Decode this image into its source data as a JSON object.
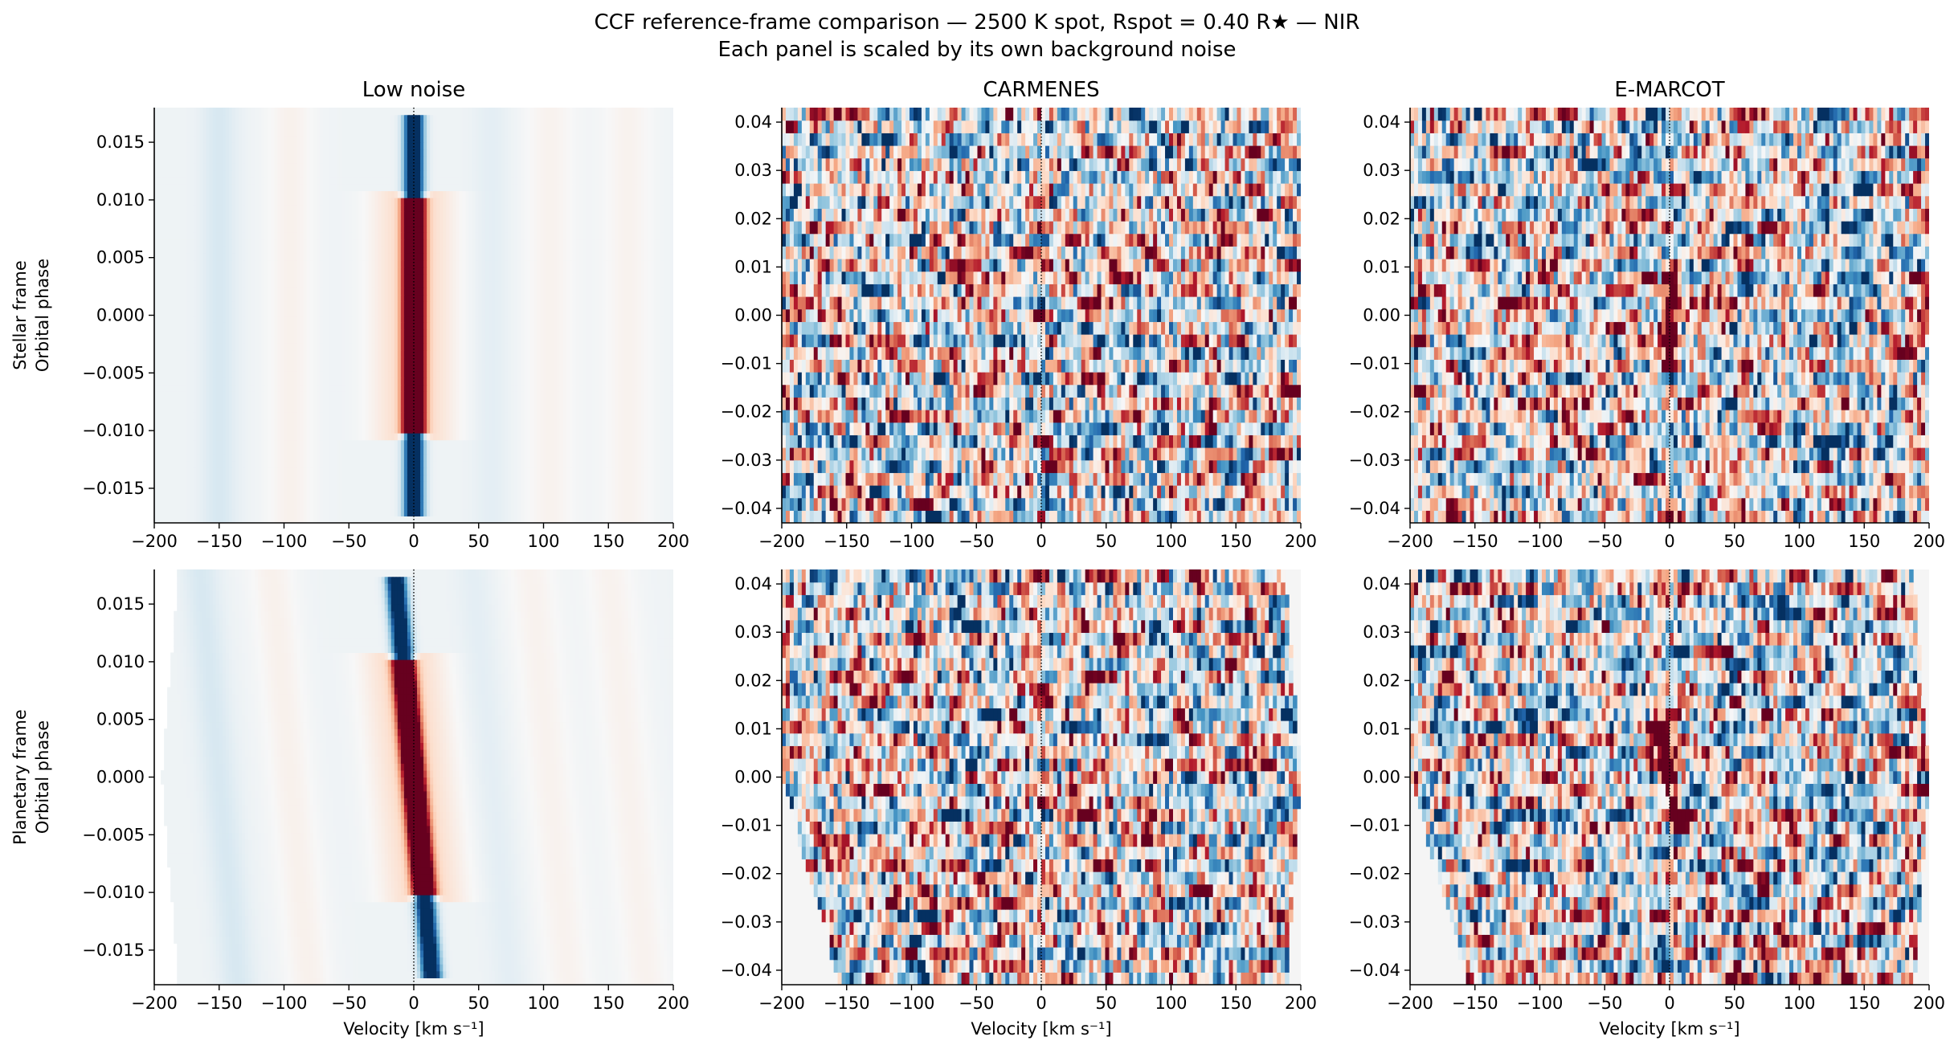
{
  "figure": {
    "title_line1": "CCF reference-frame comparison — 2500 K spot, Rspot = 0.40 R★ — NIR",
    "title_line2": "Each panel is scaled by its own background noise"
  },
  "chart_data": [
    {
      "type": "heatmap",
      "row": "Stellar frame",
      "column": "Low noise",
      "title": "Low noise",
      "xlabel": "",
      "ylabel": "Stellar frame\nOrbital phase",
      "xlim": [
        -200,
        200
      ],
      "ylim": [
        -0.018,
        0.018
      ],
      "xticks": [
        -200,
        -150,
        -100,
        -50,
        0,
        50,
        100,
        150,
        200
      ],
      "yticks": [
        -0.015,
        -0.01,
        -0.005,
        0.0,
        0.005,
        0.01,
        0.015
      ],
      "ytick_labels": [
        "−0.015",
        "−0.010",
        "−0.005",
        "0.000",
        "0.005",
        "0.010",
        "0.015"
      ],
      "colormap": "RdBu_r",
      "reference_line_x": 0,
      "signal": {
        "center_velocity": 0,
        "slope_kms_per_phase": 0,
        "red_trace_phase_range": [
          -0.01,
          0.01
        ],
        "blue_tails": true
      }
    },
    {
      "type": "heatmap",
      "row": "Stellar frame",
      "column": "CARMENES",
      "title": "CARMENES",
      "xlabel": "",
      "ylabel": "",
      "xlim": [
        -200,
        200
      ],
      "ylim": [
        -0.043,
        0.043
      ],
      "xticks": [
        -200,
        -150,
        -100,
        -50,
        0,
        50,
        100,
        150,
        200
      ],
      "yticks": [
        -0.04,
        -0.03,
        -0.02,
        -0.01,
        0.0,
        0.01,
        0.02,
        0.03,
        0.04
      ],
      "ytick_labels": [
        "−0.04",
        "−0.03",
        "−0.02",
        "−0.01",
        "0.00",
        "0.01",
        "0.02",
        "0.03",
        "0.04"
      ],
      "colormap": "RdBu_r",
      "reference_line_x": 0,
      "noise_dominated": true
    },
    {
      "type": "heatmap",
      "row": "Stellar frame",
      "column": "E-MARCOT",
      "title": "E-MARCOT",
      "xlabel": "",
      "ylabel": "",
      "xlim": [
        -200,
        200
      ],
      "ylim": [
        -0.043,
        0.043
      ],
      "xticks": [
        -200,
        -150,
        -100,
        -50,
        0,
        50,
        100,
        150,
        200
      ],
      "yticks": [
        -0.04,
        -0.03,
        -0.02,
        -0.01,
        0.0,
        0.01,
        0.02,
        0.03,
        0.04
      ],
      "ytick_labels": [
        "−0.04",
        "−0.03",
        "−0.02",
        "−0.01",
        "0.00",
        "0.01",
        "0.02",
        "0.03",
        "0.04"
      ],
      "colormap": "RdBu_r",
      "reference_line_x": 0,
      "noise_dominated": true,
      "signal": {
        "center_velocity": 0,
        "red_trace_phase_range": [
          -0.01,
          0.01
        ]
      }
    },
    {
      "type": "heatmap",
      "row": "Planetary frame",
      "column": "Low noise",
      "title": "",
      "xlabel": "Velocity [km s⁻¹]",
      "ylabel": "Planetary frame\nOrbital phase",
      "xlim": [
        -200,
        200
      ],
      "ylim": [
        -0.018,
        0.018
      ],
      "xticks": [
        -200,
        -150,
        -100,
        -50,
        0,
        50,
        100,
        150,
        200
      ],
      "yticks": [
        -0.015,
        -0.01,
        -0.005,
        0.0,
        0.005,
        0.01,
        0.015
      ],
      "ytick_labels": [
        "−0.015",
        "−0.010",
        "−0.005",
        "0.000",
        "0.005",
        "0.010",
        "0.015"
      ],
      "colormap": "RdBu_r",
      "reference_line_x": 0,
      "signal": {
        "center_velocity": 0,
        "slope_kms_per_phase": -800,
        "red_trace_phase_range": [
          -0.01,
          0.01
        ],
        "blue_tails": true
      }
    },
    {
      "type": "heatmap",
      "row": "Planetary frame",
      "column": "CARMENES",
      "title": "",
      "xlabel": "Velocity [km s⁻¹]",
      "ylabel": "",
      "xlim": [
        -200,
        200
      ],
      "ylim": [
        -0.043,
        0.043
      ],
      "xticks": [
        -200,
        -150,
        -100,
        -50,
        0,
        50,
        100,
        150,
        200
      ],
      "yticks": [
        -0.04,
        -0.03,
        -0.02,
        -0.01,
        0.0,
        0.01,
        0.02,
        0.03,
        0.04
      ],
      "ytick_labels": [
        "−0.04",
        "−0.03",
        "−0.02",
        "−0.01",
        "0.00",
        "0.01",
        "0.02",
        "0.03",
        "0.04"
      ],
      "colormap": "RdBu_r",
      "reference_line_x": 0,
      "noise_dominated": true,
      "shifted_edges": true
    },
    {
      "type": "heatmap",
      "row": "Planetary frame",
      "column": "E-MARCOT",
      "title": "",
      "xlabel": "Velocity [km s⁻¹]",
      "ylabel": "",
      "xlim": [
        -200,
        200
      ],
      "ylim": [
        -0.043,
        0.043
      ],
      "xticks": [
        -200,
        -150,
        -100,
        -50,
        0,
        50,
        100,
        150,
        200
      ],
      "yticks": [
        -0.04,
        -0.03,
        -0.02,
        -0.01,
        0.0,
        0.01,
        0.02,
        0.03,
        0.04
      ],
      "ytick_labels": [
        "−0.04",
        "−0.03",
        "−0.02",
        "−0.01",
        "0.00",
        "0.01",
        "0.02",
        "0.03",
        "0.04"
      ],
      "colormap": "RdBu_r",
      "reference_line_x": 0,
      "noise_dominated": true,
      "shifted_edges": true,
      "signal": {
        "center_velocity": 0,
        "slope_kms_per_phase": -800,
        "red_trace_phase_range": [
          -0.01,
          0.01
        ]
      }
    }
  ]
}
